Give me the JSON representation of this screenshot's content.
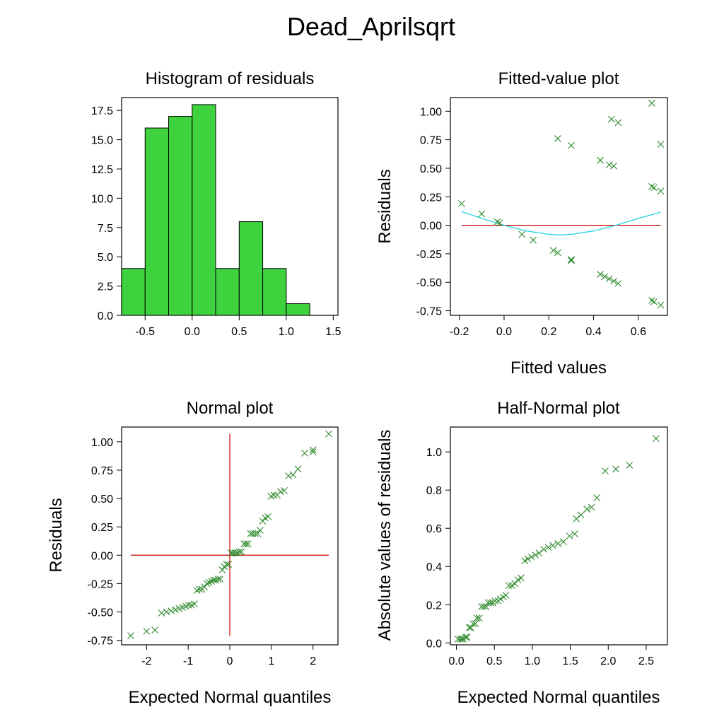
{
  "figure": {
    "title": "Dead_Aprilsqrt"
  },
  "colors": {
    "bars": "#3ed23e",
    "points": "#2e8b2e",
    "refline": "#cc0000",
    "smooth": "#22d4e0",
    "axis": "#000000"
  },
  "chart_data": [
    {
      "type": "bar",
      "title": "Histogram of residuals",
      "xlabel": "",
      "ylabel": "",
      "bin_edges": [
        -0.75,
        -0.5,
        -0.25,
        0.0,
        0.25,
        0.5,
        0.75,
        1.0,
        1.25
      ],
      "values": [
        4,
        16,
        17,
        18,
        4,
        8,
        4,
        1
      ],
      "xlim": [
        -0.75,
        1.55
      ],
      "ylim": [
        0,
        18.6
      ],
      "xticks": [
        -0.5,
        0.0,
        0.5,
        1.0,
        1.5
      ],
      "xtick_labels": [
        "-0.5",
        "0.0",
        "0.5",
        "1.0",
        "1.5"
      ],
      "yticks": [
        0,
        2.5,
        5,
        7.5,
        10,
        12.5,
        15,
        17.5
      ],
      "ytick_labels": [
        "0.0",
        "2.5",
        "5.0",
        "7.5",
        "10.0",
        "12.5",
        "15.0",
        "17.5"
      ]
    },
    {
      "type": "scatter",
      "title": "Fitted-value plot",
      "xlabel": "Fitted values",
      "ylabel": "Residuals",
      "xlim": [
        -0.24,
        0.73
      ],
      "ylim": [
        -0.79,
        1.12
      ],
      "xticks": [
        -0.2,
        0.0,
        0.2,
        0.4,
        0.6
      ],
      "xtick_labels": [
        "-0.2",
        "0.0",
        "0.2",
        "0.4",
        "0.6"
      ],
      "yticks": [
        -0.75,
        -0.5,
        -0.25,
        0.0,
        0.25,
        0.5,
        0.75,
        1.0
      ],
      "ytick_labels": [
        "-0.75",
        "-0.50",
        "-0.25",
        "0.00",
        "0.25",
        "0.50",
        "0.75",
        "1.00"
      ],
      "points": [
        [
          -0.19,
          0.19
        ],
        [
          -0.1,
          0.1
        ],
        [
          -0.03,
          0.03
        ],
        [
          -0.02,
          0.02
        ],
        [
          0.08,
          -0.08
        ],
        [
          0.13,
          -0.13
        ],
        [
          0.22,
          -0.22
        ],
        [
          0.24,
          -0.24
        ],
        [
          0.3,
          -0.3
        ],
        [
          0.3,
          -0.31
        ],
        [
          0.43,
          -0.43
        ],
        [
          0.45,
          -0.45
        ],
        [
          0.47,
          -0.47
        ],
        [
          0.49,
          -0.49
        ],
        [
          0.51,
          -0.51
        ],
        [
          0.66,
          -0.66
        ],
        [
          0.67,
          -0.67
        ],
        [
          0.7,
          -0.7
        ],
        [
          0.24,
          0.76
        ],
        [
          0.3,
          0.7
        ],
        [
          0.43,
          0.57
        ],
        [
          0.47,
          0.53
        ],
        [
          0.49,
          0.52
        ],
        [
          0.48,
          0.93
        ],
        [
          0.51,
          0.9
        ],
        [
          0.66,
          1.07
        ],
        [
          0.66,
          0.34
        ],
        [
          0.67,
          0.33
        ],
        [
          0.7,
          0.71
        ],
        [
          0.7,
          0.3
        ]
      ],
      "reference_line": {
        "y": 0.0,
        "x": [
          -0.19,
          0.7
        ]
      },
      "smooth_curve": [
        [
          -0.19,
          0.12
        ],
        [
          -0.1,
          0.06
        ],
        [
          0.0,
          0.0
        ],
        [
          0.1,
          -0.05
        ],
        [
          0.2,
          -0.08
        ],
        [
          0.25,
          -0.085
        ],
        [
          0.3,
          -0.08
        ],
        [
          0.4,
          -0.05
        ],
        [
          0.5,
          0.0
        ],
        [
          0.6,
          0.06
        ],
        [
          0.7,
          0.115
        ]
      ]
    },
    {
      "type": "scatter",
      "title": "Normal plot",
      "xlabel": "Expected Normal quantiles",
      "ylabel": "Residuals",
      "xlim": [
        -2.6,
        2.6
      ],
      "ylim": [
        -0.79,
        1.13
      ],
      "xticks": [
        -2,
        -1,
        0,
        1,
        2
      ],
      "xtick_labels": [
        "-2",
        "-1",
        "0",
        "1",
        "2"
      ],
      "yticks": [
        -0.75,
        -0.5,
        -0.25,
        0.0,
        0.25,
        0.5,
        0.75,
        1.0
      ],
      "ytick_labels": [
        "-0.75",
        "-0.50",
        "-0.25",
        "0.00",
        "0.25",
        "0.50",
        "0.75",
        "1.00"
      ],
      "points": [
        [
          -2.38,
          -0.71
        ],
        [
          -2.0,
          -0.67
        ],
        [
          -1.8,
          -0.66
        ],
        [
          -1.64,
          -0.51
        ],
        [
          -1.52,
          -0.5
        ],
        [
          -1.41,
          -0.49
        ],
        [
          -1.31,
          -0.48
        ],
        [
          -1.22,
          -0.47
        ],
        [
          -1.14,
          -0.46
        ],
        [
          -1.06,
          -0.45
        ],
        [
          -0.99,
          -0.44
        ],
        [
          -0.92,
          -0.44
        ],
        [
          -0.85,
          -0.43
        ],
        [
          -0.79,
          -0.31
        ],
        [
          -0.73,
          -0.3
        ],
        [
          -0.67,
          -0.3
        ],
        [
          -0.61,
          -0.28
        ],
        [
          -0.55,
          -0.25
        ],
        [
          -0.5,
          -0.24
        ],
        [
          -0.44,
          -0.23
        ],
        [
          -0.39,
          -0.22
        ],
        [
          -0.34,
          -0.22
        ],
        [
          -0.28,
          -0.21
        ],
        [
          -0.23,
          -0.21
        ],
        [
          -0.18,
          -0.13
        ],
        [
          -0.13,
          -0.1
        ],
        [
          -0.08,
          -0.08
        ],
        [
          -0.03,
          -0.08
        ],
        [
          0.03,
          0.02
        ],
        [
          0.08,
          0.02
        ],
        [
          0.13,
          0.02
        ],
        [
          0.18,
          0.02
        ],
        [
          0.23,
          0.03
        ],
        [
          0.28,
          0.03
        ],
        [
          0.34,
          0.1
        ],
        [
          0.39,
          0.1
        ],
        [
          0.44,
          0.1
        ],
        [
          0.5,
          0.19
        ],
        [
          0.55,
          0.19
        ],
        [
          0.61,
          0.19
        ],
        [
          0.67,
          0.19
        ],
        [
          0.73,
          0.22
        ],
        [
          0.79,
          0.3
        ],
        [
          0.85,
          0.33
        ],
        [
          0.92,
          0.34
        ],
        [
          0.99,
          0.52
        ],
        [
          1.06,
          0.53
        ],
        [
          1.14,
          0.53
        ],
        [
          1.22,
          0.56
        ],
        [
          1.31,
          0.57
        ],
        [
          1.41,
          0.7
        ],
        [
          1.52,
          0.71
        ],
        [
          1.64,
          0.76
        ],
        [
          1.8,
          0.9
        ],
        [
          2.0,
          0.91
        ],
        [
          2.0,
          0.93
        ],
        [
          2.38,
          1.07
        ]
      ],
      "reference_lines": {
        "horizontal_y": 0.0,
        "horizontal_x": [
          -2.38,
          2.38
        ],
        "vertical_x": 0.0,
        "vertical_y": [
          -0.71,
          1.07
        ]
      }
    },
    {
      "type": "scatter",
      "title": "Half-Normal plot",
      "xlabel": "Expected Normal quantiles",
      "ylabel": "Absolute values of residuals",
      "xlim": [
        -0.08,
        2.78
      ],
      "ylim": [
        -0.01,
        1.13
      ],
      "xticks": [
        0,
        0.5,
        1.0,
        1.5,
        2.0,
        2.5
      ],
      "xtick_labels": [
        "0.0",
        "0.5",
        "1.0",
        "1.5",
        "2.0",
        "2.5"
      ],
      "yticks": [
        0,
        0.2,
        0.4,
        0.6,
        0.8,
        1.0
      ],
      "ytick_labels": [
        "0.0",
        "0.2",
        "0.4",
        "0.6",
        "0.8",
        "1.0"
      ],
      "points": [
        [
          0.02,
          0.02
        ],
        [
          0.05,
          0.02
        ],
        [
          0.07,
          0.02
        ],
        [
          0.09,
          0.02
        ],
        [
          0.12,
          0.03
        ],
        [
          0.14,
          0.03
        ],
        [
          0.17,
          0.08
        ],
        [
          0.19,
          0.08
        ],
        [
          0.22,
          0.1
        ],
        [
          0.25,
          0.1
        ],
        [
          0.27,
          0.13
        ],
        [
          0.3,
          0.13
        ],
        [
          0.33,
          0.19
        ],
        [
          0.36,
          0.19
        ],
        [
          0.39,
          0.19
        ],
        [
          0.42,
          0.21
        ],
        [
          0.45,
          0.21
        ],
        [
          0.48,
          0.21
        ],
        [
          0.51,
          0.22
        ],
        [
          0.55,
          0.22
        ],
        [
          0.58,
          0.23
        ],
        [
          0.62,
          0.24
        ],
        [
          0.65,
          0.25
        ],
        [
          0.69,
          0.3
        ],
        [
          0.73,
          0.3
        ],
        [
          0.77,
          0.31
        ],
        [
          0.81,
          0.33
        ],
        [
          0.85,
          0.34
        ],
        [
          0.9,
          0.43
        ],
        [
          0.94,
          0.44
        ],
        [
          0.99,
          0.45
        ],
        [
          1.04,
          0.46
        ],
        [
          1.09,
          0.47
        ],
        [
          1.15,
          0.49
        ],
        [
          1.21,
          0.5
        ],
        [
          1.27,
          0.51
        ],
        [
          1.34,
          0.52
        ],
        [
          1.41,
          0.53
        ],
        [
          1.49,
          0.56
        ],
        [
          1.56,
          0.57
        ],
        [
          1.58,
          0.65
        ],
        [
          1.64,
          0.67
        ],
        [
          1.72,
          0.7
        ],
        [
          1.78,
          0.71
        ],
        [
          1.85,
          0.76
        ],
        [
          1.96,
          0.9
        ],
        [
          2.1,
          0.91
        ],
        [
          2.28,
          0.93
        ],
        [
          2.63,
          1.07
        ]
      ]
    }
  ]
}
